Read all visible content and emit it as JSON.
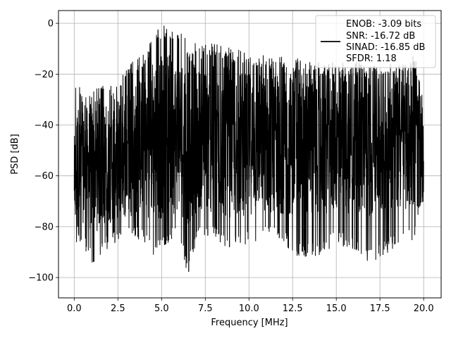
{
  "chart_data": {
    "type": "line",
    "title": "",
    "xlabel": "Frequency [MHz]",
    "ylabel": "PSD [dB]",
    "xlim": [
      -0.9,
      21.0
    ],
    "ylim": [
      -108,
      5
    ],
    "xticks": [
      0.0,
      2.5,
      5.0,
      7.5,
      10.0,
      12.5,
      15.0,
      17.5,
      20.0
    ],
    "xtick_labels": [
      "0.0",
      "2.5",
      "5.0",
      "7.5",
      "10.0",
      "12.5",
      "15.0",
      "17.5",
      "20.0"
    ],
    "yticks": [
      0,
      -20,
      -40,
      -60,
      -80,
      -100
    ],
    "ytick_labels": [
      "0",
      "−20",
      "−40",
      "−60",
      "−80",
      "−100"
    ],
    "grid": true,
    "legend": {
      "placement": "top-right",
      "lines": [
        "ENOB: -3.09 bits",
        "SNR: -16.72 dB",
        "SINAD: -16.85 dB",
        "SFDR: 1.18"
      ]
    },
    "series": [
      {
        "color": "#000000",
        "envelope": {
          "x": [
            0.0,
            0.15,
            0.5,
            1.0,
            2.0,
            2.5,
            3.0,
            3.5,
            4.0,
            4.5,
            5.0,
            5.5,
            6.0,
            6.5,
            7.0,
            7.5,
            8.0,
            9.0,
            10.0,
            11.0,
            12.0,
            13.0,
            14.0,
            15.0,
            16.0,
            17.0,
            18.0,
            19.0,
            19.5,
            20.0
          ],
          "top": [
            -32,
            -15,
            -30,
            -25,
            -24,
            -23,
            -17,
            -14,
            -12,
            -5,
            0,
            -2,
            -3,
            -7,
            -8,
            -8,
            -7,
            -10,
            -11,
            -12,
            -13,
            -14,
            -15,
            -15,
            -15,
            -16,
            -16,
            -16,
            -12,
            -30
          ],
          "bottom": [
            -72,
            -90,
            -88,
            -95,
            -88,
            -87,
            -85,
            -84,
            -88,
            -92,
            -88,
            -86,
            -84,
            -100,
            -86,
            -85,
            -85,
            -90,
            -87,
            -85,
            -88,
            -93,
            -92,
            -87,
            -90,
            -95,
            -90,
            -86,
            -85,
            -70
          ],
          "base": [
            -60,
            -58,
            -57,
            -57,
            -55,
            -53,
            -51,
            -49,
            -47,
            -45,
            -44,
            -44,
            -44,
            -45,
            -45,
            -46,
            -46,
            -47,
            -47,
            -47,
            -47,
            -47,
            -47,
            -47,
            -47,
            -47,
            -47,
            -47,
            -47,
            -55
          ]
        }
      }
    ]
  }
}
